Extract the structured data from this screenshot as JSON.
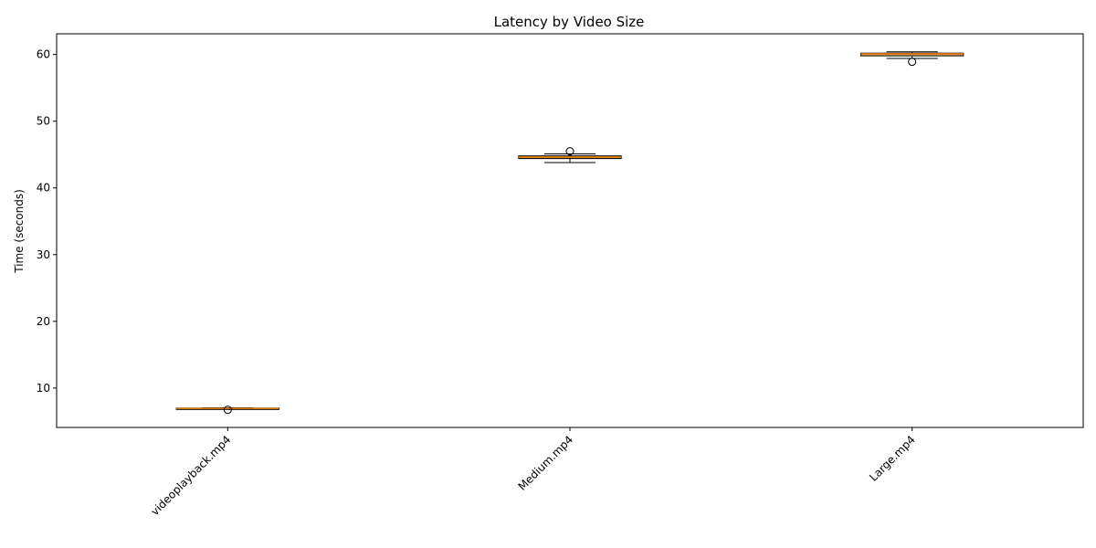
{
  "chart_data": {
    "type": "box",
    "title": "Latency by Video Size",
    "xlabel": "",
    "ylabel": "Time (seconds)",
    "ylim": [
      4.1,
      63.1
    ],
    "yticks": [
      10,
      20,
      30,
      40,
      50,
      60
    ],
    "grid": false,
    "categories": [
      "videoplayback.mp4",
      "Medium.mp4",
      "Large.mp4"
    ],
    "boxes": [
      {
        "category": "videoplayback.mp4",
        "whisker_low": 6.85,
        "q1": 6.9,
        "median": 6.95,
        "q3": 7.0,
        "whisker_high": 7.05,
        "outliers": [
          6.75
        ]
      },
      {
        "category": "Medium.mp4",
        "whisker_low": 43.8,
        "q1": 44.4,
        "median": 44.6,
        "q3": 44.8,
        "whisker_high": 45.1,
        "outliers": [
          45.5
        ]
      },
      {
        "category": "Large.mp4",
        "whisker_low": 59.4,
        "q1": 59.8,
        "median": 60.1,
        "q3": 60.2,
        "whisker_high": 60.4,
        "outliers": [
          58.9
        ]
      }
    ],
    "colors": {
      "box_fill": "#f4a261",
      "box_edge": "#000000",
      "median": "#e07b00"
    }
  }
}
